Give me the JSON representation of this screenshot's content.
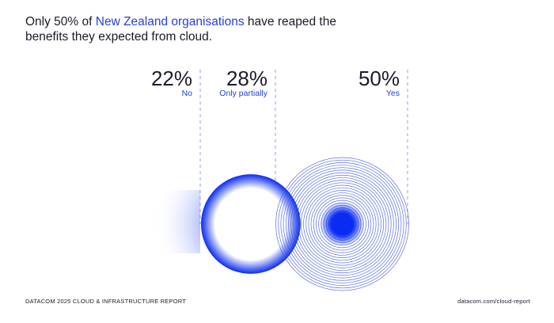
{
  "header": {
    "title_prefix": "Only 50% of ",
    "title_highlight": "New Zealand organisations",
    "title_suffix": " have reaped the benefits they expected from cloud."
  },
  "chart_data": {
    "type": "bubble",
    "title": "Only 50% of New Zealand organisations have reaped the benefits they expected from cloud.",
    "categories": [
      "No",
      "Only partially",
      "Yes"
    ],
    "values": [
      22,
      28,
      50
    ],
    "value_labels": [
      "22%",
      "28%",
      "50%"
    ],
    "unit": "%",
    "colors": {
      "accent": "#0a2bf2",
      "label": "#1f3fd6",
      "text": "#1b1b2a",
      "ring": "#3f57d8",
      "divider": "#8fa0e0"
    }
  },
  "footer": {
    "left": "DATACOM 2025 CLOUD & INFRASTRUCTURE REPORT",
    "right": "datacom.com/cloud-report"
  }
}
